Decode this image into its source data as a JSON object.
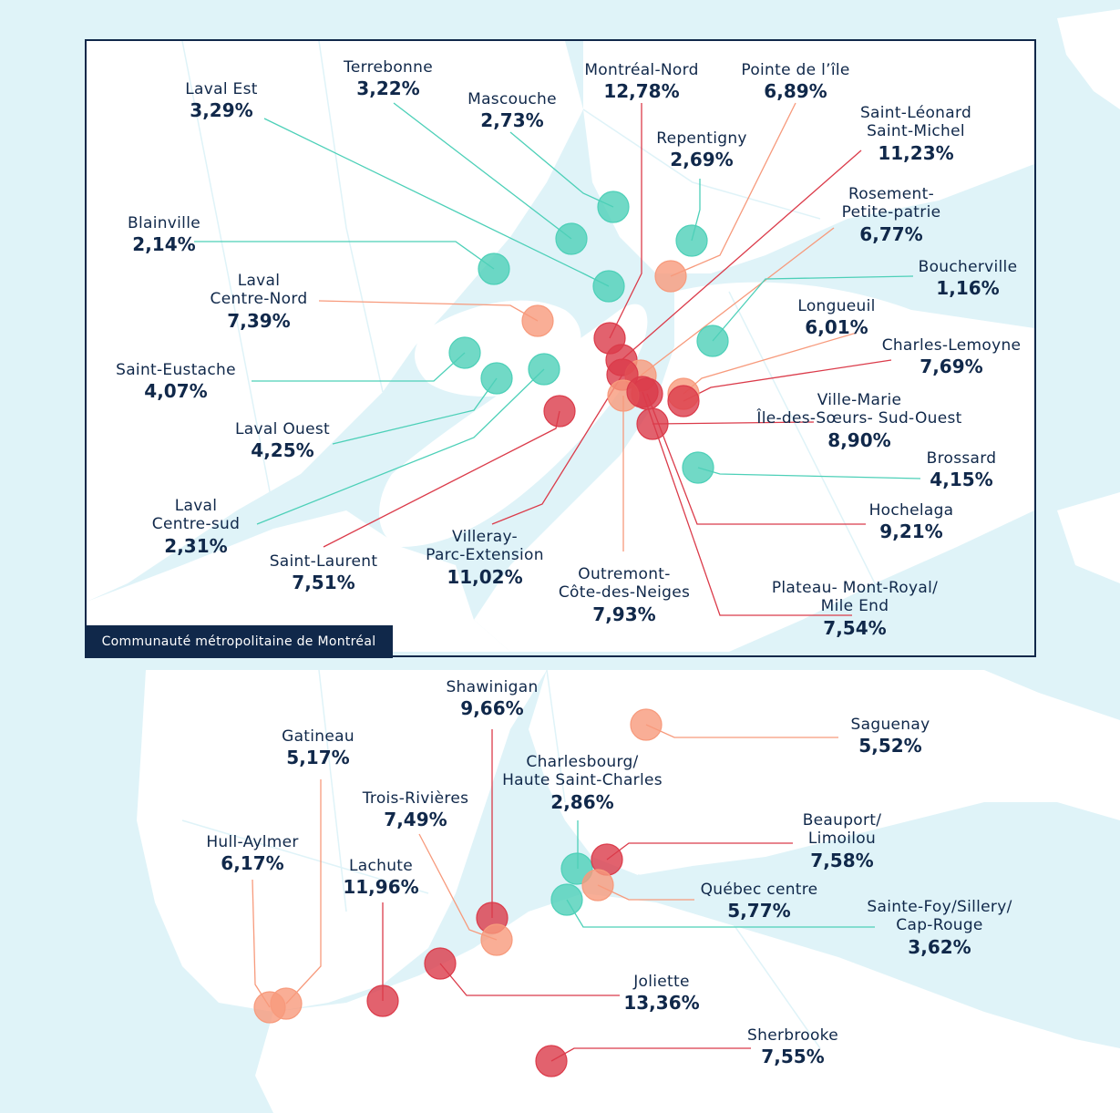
{
  "inset_title": "Communauté métropolitaine de Montréal",
  "colors": {
    "background": "#dff3f8",
    "land": "#ffffff",
    "low": "#4dd0b8",
    "mid": "#f79a7c",
    "high": "#db3b4a",
    "frame": "#10284a"
  },
  "legend_scale": "circle color: green = low, orange = medium, red = high percentage",
  "inset_labels": [
    {
      "id": "laval-est",
      "name": [
        "Laval Est"
      ],
      "pct": "3,29%",
      "value": 3.29,
      "tier": "low"
    },
    {
      "id": "terrebonne",
      "name": [
        "Terrebonne"
      ],
      "pct": "3,22%",
      "value": 3.22,
      "tier": "low"
    },
    {
      "id": "mascouche",
      "name": [
        "Mascouche"
      ],
      "pct": "2,73%",
      "value": 2.73,
      "tier": "low"
    },
    {
      "id": "montreal-nord",
      "name": [
        "Montréal-Nord"
      ],
      "pct": "12,78%",
      "value": 12.78,
      "tier": "high"
    },
    {
      "id": "pointe-de-lile",
      "name": [
        "Pointe de l’île"
      ],
      "pct": "6,89%",
      "value": 6.89,
      "tier": "mid"
    },
    {
      "id": "repentigny",
      "name": [
        "Repentigny"
      ],
      "pct": "2,69%",
      "value": 2.69,
      "tier": "low"
    },
    {
      "id": "saint-leonard",
      "name": [
        "Saint-Léonard",
        "Saint-Michel"
      ],
      "pct": "11,23%",
      "value": 11.23,
      "tier": "high"
    },
    {
      "id": "rosemont",
      "name": [
        "Rosement-",
        "Petite-patrie"
      ],
      "pct": "6,77%",
      "value": 6.77,
      "tier": "mid"
    },
    {
      "id": "blainville",
      "name": [
        "Blainville"
      ],
      "pct": "2,14%",
      "value": 2.14,
      "tier": "low"
    },
    {
      "id": "laval-centre-nord",
      "name": [
        "Laval",
        "Centre-Nord"
      ],
      "pct": "7,39%",
      "value": 7.39,
      "tier": "mid"
    },
    {
      "id": "boucherville",
      "name": [
        "Boucherville"
      ],
      "pct": "1,16%",
      "value": 1.16,
      "tier": "low"
    },
    {
      "id": "longueuil",
      "name": [
        "Longueuil"
      ],
      "pct": "6,01%",
      "value": 6.01,
      "tier": "mid"
    },
    {
      "id": "charles-lemoyne",
      "name": [
        "Charles-Lemoyne"
      ],
      "pct": "7,69%",
      "value": 7.69,
      "tier": "high"
    },
    {
      "id": "saint-eustache",
      "name": [
        "Saint-Eustache"
      ],
      "pct": "4,07%",
      "value": 4.07,
      "tier": "low"
    },
    {
      "id": "ville-marie",
      "name": [
        "Ville-Marie",
        "Île-des-Sœurs- Sud-Ouest"
      ],
      "pct": "8,90%",
      "value": 8.9,
      "tier": "high"
    },
    {
      "id": "laval-ouest",
      "name": [
        "Laval Ouest"
      ],
      "pct": "4,25%",
      "value": 4.25,
      "tier": "low"
    },
    {
      "id": "brossard",
      "name": [
        "Brossard"
      ],
      "pct": "4,15%",
      "value": 4.15,
      "tier": "low"
    },
    {
      "id": "laval-centre-sud",
      "name": [
        "Laval",
        "Centre-sud"
      ],
      "pct": "2,31%",
      "value": 2.31,
      "tier": "low"
    },
    {
      "id": "hochelaga",
      "name": [
        "Hochelaga"
      ],
      "pct": "9,21%",
      "value": 9.21,
      "tier": "high"
    },
    {
      "id": "saint-laurent",
      "name": [
        "Saint-Laurent"
      ],
      "pct": "7,51%",
      "value": 7.51,
      "tier": "high"
    },
    {
      "id": "villeray",
      "name": [
        "Villeray-",
        "Parc-Extension"
      ],
      "pct": "11,02%",
      "value": 11.02,
      "tier": "high"
    },
    {
      "id": "outremont",
      "name": [
        "Outremont-",
        "Côte-des-Neiges"
      ],
      "pct": "7,93%",
      "value": 7.93,
      "tier": "mid"
    },
    {
      "id": "plateau",
      "name": [
        "Plateau- Mont-Royal/",
        "Mile End"
      ],
      "pct": "7,54%",
      "value": 7.54,
      "tier": "high"
    }
  ],
  "province_labels": [
    {
      "id": "shawinigan",
      "name": [
        "Shawinigan"
      ],
      "pct": "9,66%",
      "value": 9.66,
      "tier": "high"
    },
    {
      "id": "saguenay",
      "name": [
        "Saguenay"
      ],
      "pct": "5,52%",
      "value": 5.52,
      "tier": "mid"
    },
    {
      "id": "gatineau",
      "name": [
        "Gatineau"
      ],
      "pct": "5,17%",
      "value": 5.17,
      "tier": "mid"
    },
    {
      "id": "charlesbourg",
      "name": [
        "Charlesbourg/",
        "Haute Saint-Charles"
      ],
      "pct": "2,86%",
      "value": 2.86,
      "tier": "low"
    },
    {
      "id": "trois-rivieres",
      "name": [
        "Trois-Rivières"
      ],
      "pct": "7,49%",
      "value": 7.49,
      "tier": "mid"
    },
    {
      "id": "beauport",
      "name": [
        "Beauport/",
        "Limoilou"
      ],
      "pct": "7,58%",
      "value": 7.58,
      "tier": "high"
    },
    {
      "id": "hull-aylmer",
      "name": [
        "Hull-Aylmer"
      ],
      "pct": "6,17%",
      "value": 6.17,
      "tier": "mid"
    },
    {
      "id": "lachute",
      "name": [
        "Lachute"
      ],
      "pct": "11,96%",
      "value": 11.96,
      "tier": "high"
    },
    {
      "id": "quebec-centre",
      "name": [
        "Québec centre"
      ],
      "pct": "5,77%",
      "value": 5.77,
      "tier": "mid"
    },
    {
      "id": "sainte-foy",
      "name": [
        "Sainte-Foy/Sillery/",
        "Cap-Rouge"
      ],
      "pct": "3,62%",
      "value": 3.62,
      "tier": "low"
    },
    {
      "id": "joliette",
      "name": [
        "Joliette"
      ],
      "pct": "13,36%",
      "value": 13.36,
      "tier": "high"
    },
    {
      "id": "sherbrooke",
      "name": [
        "Sherbrooke"
      ],
      "pct": "7,55%",
      "value": 7.55,
      "tier": "high"
    }
  ]
}
